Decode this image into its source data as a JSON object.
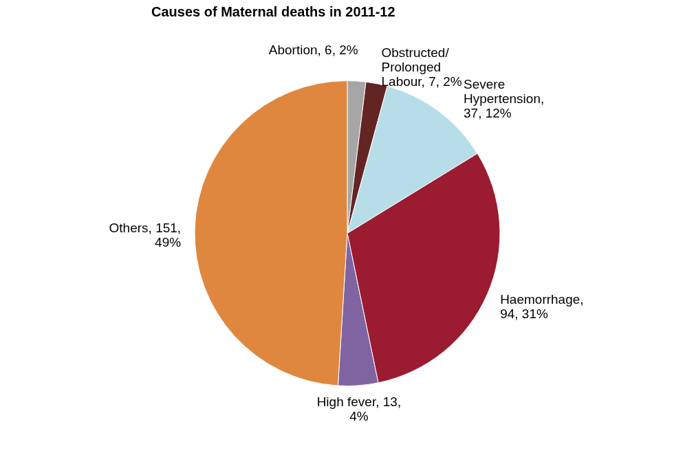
{
  "chart_data": {
    "type": "pie",
    "title": "Causes of Maternal deaths in 2011-12",
    "categories": [
      "Abortion",
      "Obstructed/ Prolonged Labour",
      "Severe Hypertension",
      "Haemorrhage",
      "High fever",
      "Others"
    ],
    "values": [
      6,
      7,
      37,
      94,
      13,
      151
    ],
    "colors": [
      "#a6a6a6",
      "#632523",
      "#b7dee8",
      "#9b1c31",
      "#8064a2",
      "#e0873f"
    ],
    "value_labels": [
      ", 6, 2%",
      ", 7, 2%",
      ", 37, 12%",
      ", 94, 31%",
      ", 13, 4%",
      ", 151, 49%"
    ]
  }
}
